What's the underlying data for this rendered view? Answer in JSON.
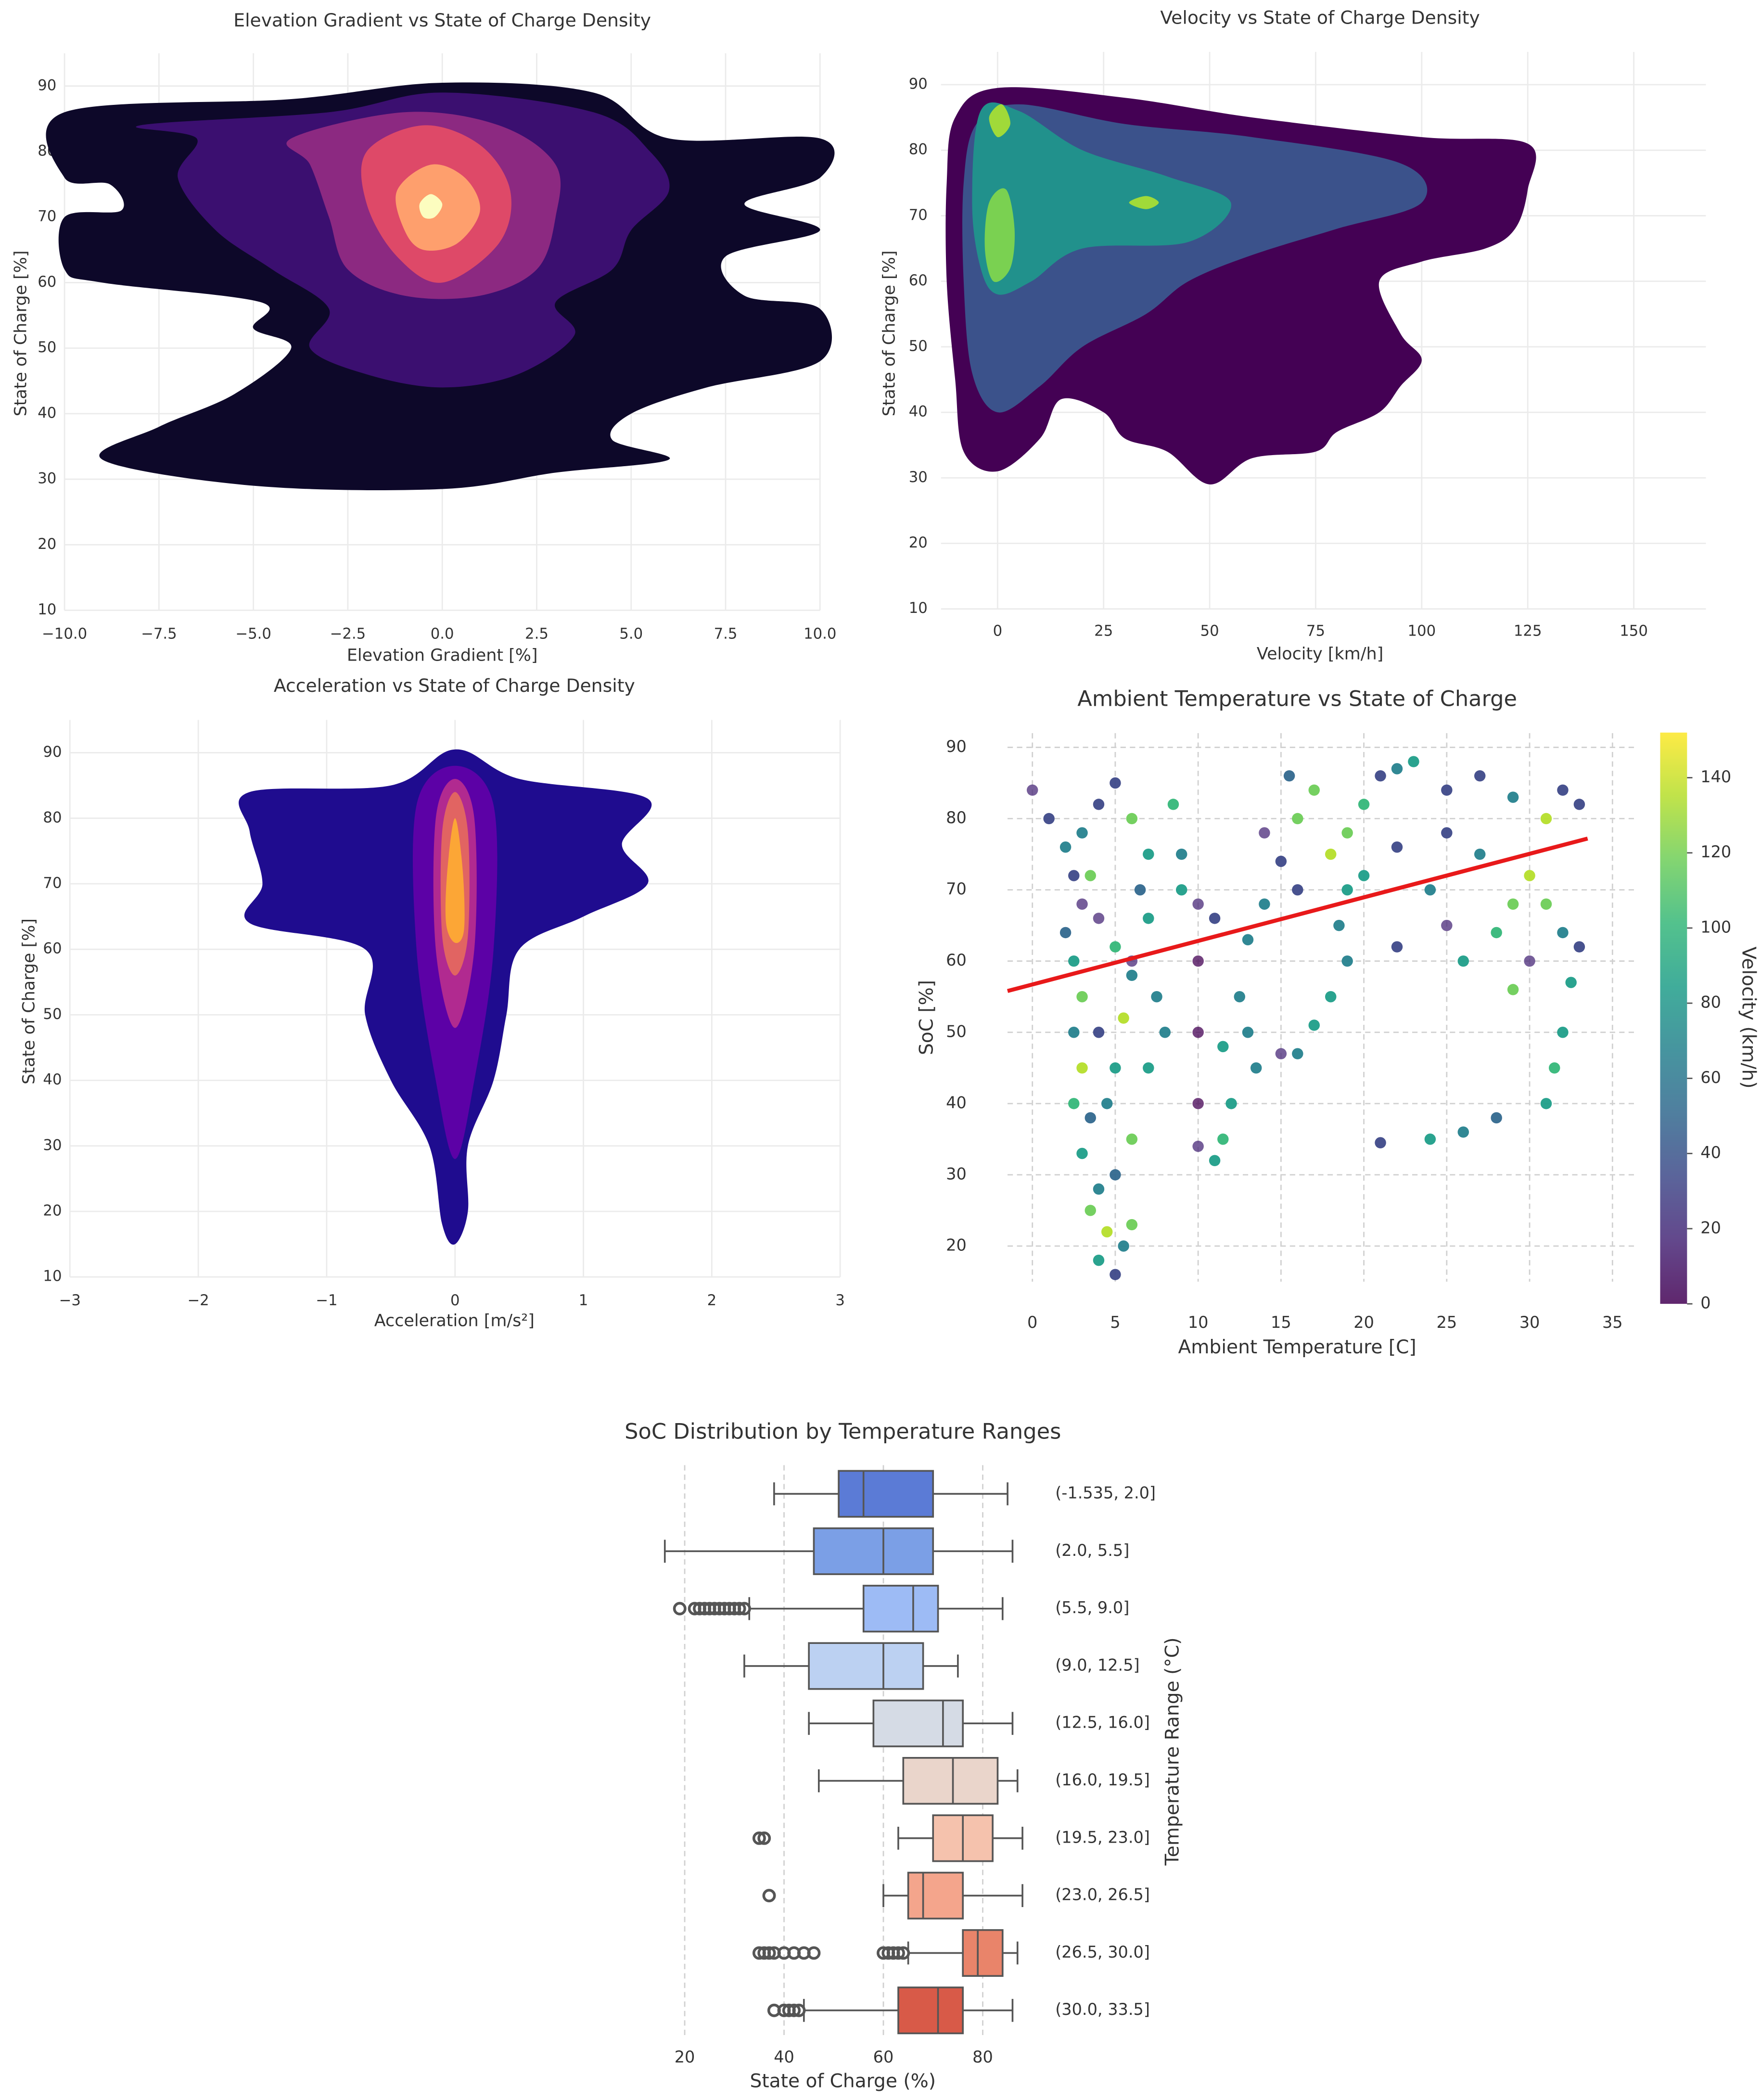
{
  "chart_data": [
    {
      "type": "density",
      "title": "Elevation Gradient vs State of Charge Density",
      "xlabel": "Elevation Gradient [%]",
      "ylabel": "State of Charge [%]",
      "xlim": [
        -10,
        10
      ],
      "ylim": [
        10,
        95
      ],
      "xticks": [
        {
          "value": -10,
          "label": "−10.0"
        },
        {
          "value": -7.5,
          "label": "−7.5"
        },
        {
          "value": -5,
          "label": "−5.0"
        },
        {
          "value": -2.5,
          "label": "−2.5"
        },
        {
          "value": 0,
          "label": "0.0"
        },
        2.5,
        {
          "value": 5,
          "label": "5.0"
        },
        7.5,
        {
          "value": 10,
          "label": "10.0"
        }
      ],
      "yticks": [
        10,
        20,
        30,
        40,
        50,
        60,
        70,
        80,
        90
      ],
      "grid": true,
      "contours": [
        {
          "color": "#0d0829",
          "x": [
            -10,
            -4,
            0,
            4,
            6,
            10,
            10,
            8,
            10,
            7.5,
            8,
            10,
            10,
            7,
            5,
            4.5,
            6,
            3,
            0,
            -5,
            -9,
            -7.5,
            -5.5,
            -4,
            -5,
            -4.8,
            -9,
            -10,
            -10,
            -8.5,
            -8.8,
            -10
          ],
          "y": [
            86,
            88,
            90.5,
            89,
            82,
            82,
            76,
            72,
            68,
            64,
            58,
            56,
            48,
            44,
            40,
            36,
            33,
            31,
            28.5,
            29,
            33,
            38,
            43,
            50,
            53,
            57,
            60,
            62,
            70,
            71,
            75,
            76
          ]
        },
        {
          "color": "#3b0f70",
          "x": [
            -8,
            -3,
            0,
            4,
            5.5,
            6,
            5,
            4.5,
            3,
            3.5,
            2,
            0,
            -2,
            -3.5,
            -3,
            -4.5,
            -6,
            -7,
            -6.5
          ],
          "y": [
            84,
            86,
            89,
            86,
            80,
            74,
            68,
            62,
            57,
            52,
            46,
            44,
            46,
            50,
            56,
            62,
            68,
            76,
            82
          ]
        },
        {
          "color": "#8c2981",
          "x": [
            -4,
            -1,
            1.5,
            3,
            3,
            2.5,
            1,
            -1,
            -2.5,
            -3,
            -3.5
          ],
          "y": [
            82,
            86,
            84,
            78,
            70,
            62,
            58,
            58,
            62,
            70,
            78
          ]
        },
        {
          "color": "#de4968",
          "x": [
            -2,
            -0.5,
            1,
            1.8,
            1.5,
            0,
            -1.2,
            -2
          ],
          "y": [
            80,
            84,
            81,
            74,
            66,
            60,
            64,
            72
          ]
        },
        {
          "color": "#fe9f6d",
          "x": [
            -1.2,
            -0.3,
            0.6,
            1,
            0.4,
            -0.5,
            -1
          ],
          "y": [
            74,
            78,
            76,
            71,
            66,
            65,
            68
          ]
        },
        {
          "color": "#fcfdbf",
          "x": [
            -0.6,
            -0.3,
            0,
            -0.2,
            -0.5
          ],
          "y": [
            72,
            73.5,
            72,
            70,
            70
          ]
        }
      ]
    },
    {
      "type": "density",
      "title": "Velocity vs State of Charge Density",
      "xlabel": "Velocity [km/h]",
      "ylabel": "State of Charge [%]",
      "xlim": [
        -20,
        167
      ],
      "ylim": [
        10,
        95
      ],
      "xticks": [
        0,
        25,
        50,
        75,
        100,
        125,
        150
      ],
      "yticks": [
        10,
        20,
        30,
        40,
        50,
        60,
        70,
        80,
        90
      ],
      "grid": true,
      "contours": [
        {
          "color": "#440154",
          "x": [
            -10,
            0,
            30,
            60,
            100,
            125,
            125,
            122,
            115,
            100,
            90,
            95,
            100,
            95,
            90,
            80,
            75,
            60,
            50,
            40,
            30,
            25,
            15,
            10,
            0,
            -8,
            -10,
            -12,
            -12
          ],
          "y": [
            85,
            89.5,
            88,
            85,
            82,
            81,
            74,
            68,
            65,
            63,
            60,
            52,
            48,
            44,
            40,
            37,
            34,
            33,
            29,
            34,
            36,
            40,
            42,
            36,
            31,
            34,
            45,
            60,
            75
          ]
        },
        {
          "color": "#3b528b",
          "x": [
            -5,
            5,
            30,
            60,
            95,
            100,
            80,
            60,
            45,
            35,
            20,
            10,
            0,
            -6,
            -8,
            -8
          ],
          "y": [
            84,
            87,
            84,
            82,
            78,
            72,
            68,
            64,
            60,
            55,
            50,
            44,
            40,
            46,
            60,
            75
          ]
        },
        {
          "color": "#21918c",
          "x": [
            -4,
            5,
            20,
            40,
            55,
            45,
            20,
            8,
            0,
            -4,
            -6
          ],
          "y": [
            86,
            86,
            80,
            76,
            72,
            66,
            65,
            60,
            58,
            62,
            72
          ]
        },
        {
          "color": "#7ad151",
          "x": [
            -2,
            2,
            4,
            3,
            -1,
            -3
          ],
          "y": [
            72,
            74,
            68,
            62,
            60,
            65
          ]
        },
        {
          "color": "#a0da39",
          "x": [
            -2,
            1,
            3,
            0
          ],
          "y": [
            85,
            87,
            84,
            82
          ]
        },
        {
          "color": "#a0da39",
          "x": [
            31,
            35,
            38,
            35
          ],
          "y": [
            72,
            73,
            72,
            71
          ]
        }
      ]
    },
    {
      "type": "density",
      "title": "Acceleration vs State of Charge Density",
      "xlabel": "Acceleration [m/s²]",
      "ylabel": "State of Charge [%]",
      "xlim": [
        -3,
        3
      ],
      "ylim": [
        10,
        95
      ],
      "xticks": [
        {
          "value": -3,
          "label": "−3"
        },
        {
          "value": -2,
          "label": "−2"
        },
        {
          "value": -1,
          "label": "−1"
        },
        0,
        1,
        2,
        3
      ],
      "yticks": [
        10,
        20,
        30,
        40,
        50,
        60,
        70,
        80,
        90
      ],
      "grid": true,
      "contours": [
        {
          "color": "#1f0c8f",
          "x": [
            -1.6,
            -0.5,
            0,
            0.5,
            1.5,
            1.3,
            1.5,
            1,
            0.5,
            0.4,
            0.3,
            0.1,
            0.1,
            0,
            -0.1,
            -0.2,
            -0.5,
            -0.7,
            -0.7,
            -1.6,
            -1.5,
            -1.6
          ],
          "y": [
            84,
            85,
            90.5,
            86,
            83,
            76,
            70,
            65,
            60,
            50,
            40,
            30,
            20,
            15,
            18,
            30,
            40,
            50,
            60,
            64,
            70,
            78
          ]
        },
        {
          "color": "#5c01a6",
          "x": [
            -0.3,
            0,
            0.3,
            0.3,
            0.15,
            0,
            -0.15,
            -0.3
          ],
          "y": [
            82,
            88,
            82,
            60,
            40,
            28,
            40,
            60
          ]
        },
        {
          "color": "#b12a90",
          "x": [
            -0.15,
            0,
            0.15,
            0.15,
            0,
            -0.15
          ],
          "y": [
            80,
            86,
            80,
            60,
            48,
            60
          ]
        },
        {
          "color": "#e16462",
          "x": [
            -0.1,
            0,
            0.1,
            0.1,
            0,
            -0.1
          ],
          "y": [
            78,
            84,
            78,
            62,
            56,
            62
          ]
        },
        {
          "color": "#fca636",
          "x": [
            -0.06,
            0,
            0.06,
            0.07,
            0,
            -0.07
          ],
          "y": [
            72,
            80,
            72,
            63,
            61,
            64
          ]
        }
      ]
    },
    {
      "type": "scatter",
      "title": "Ambient Temperature vs State of Charge",
      "xlabel": "Ambient Temperature [C]",
      "ylabel": "SoC [%]",
      "xlim": [
        -1.5,
        36.5
      ],
      "ylim": [
        15,
        92
      ],
      "xticks": [
        0,
        5,
        10,
        15,
        20,
        25,
        30,
        35
      ],
      "yticks": [
        20,
        30,
        40,
        50,
        60,
        70,
        80,
        90
      ],
      "grid": true,
      "x": [
        0,
        1,
        2,
        2.5,
        3,
        2,
        2.5,
        3,
        2.5,
        3,
        2.5,
        3.5,
        3,
        4,
        3.5,
        4.5,
        4,
        5,
        5.5,
        6,
        5,
        6,
        4.5,
        5,
        4,
        5.5,
        6,
        5,
        4,
        3.5,
        3,
        4,
        5,
        6,
        7,
        6.5,
        7,
        6,
        7.5,
        8,
        7,
        8.5,
        9,
        10,
        10,
        10,
        10,
        10,
        11,
        11.5,
        12,
        11.5,
        13,
        13.5,
        12.5,
        13,
        14,
        11,
        9,
        14,
        15,
        16,
        15.5,
        17,
        16,
        18,
        19,
        18.5,
        19,
        18,
        17,
        16,
        15,
        19,
        20,
        21,
        22,
        23,
        20,
        22,
        24,
        25,
        26,
        28,
        29,
        30,
        31,
        32,
        33,
        32.5,
        32,
        31.5,
        31,
        28,
        26,
        24,
        21,
        25,
        27,
        29,
        31,
        32,
        33,
        27,
        25,
        30,
        29,
        22
      ],
      "y": [
        84,
        80,
        76,
        72,
        68,
        64,
        60,
        55,
        50,
        45,
        40,
        38,
        33,
        28,
        25,
        22,
        18,
        16,
        20,
        23,
        30,
        35,
        40,
        45,
        50,
        52,
        58,
        62,
        66,
        72,
        78,
        82,
        85,
        80,
        75,
        70,
        66,
        60,
        55,
        50,
        45,
        82,
        75,
        68,
        60,
        50,
        40,
        34,
        32,
        35,
        40,
        48,
        50,
        45,
        55,
        63,
        68,
        66,
        70,
        78,
        74,
        70,
        86,
        84,
        80,
        75,
        70,
        65,
        60,
        55,
        51,
        47,
        47,
        78,
        82,
        86,
        87,
        88,
        72,
        76,
        70,
        65,
        60,
        64,
        68,
        72,
        68,
        64,
        62,
        57,
        50,
        45,
        40,
        38,
        36,
        35,
        34.5,
        84,
        86,
        83,
        80,
        84,
        82,
        75,
        78,
        60,
        56,
        62
      ],
      "c": [
        20,
        30,
        60,
        40,
        20,
        50,
        90,
        110,
        70,
        130,
        100,
        50,
        80,
        60,
        120,
        140,
        90,
        40,
        70,
        110,
        50,
        120,
        60,
        80,
        40,
        130,
        60,
        100,
        20,
        110,
        60,
        40,
        30,
        110,
        90,
        50,
        80,
        20,
        60,
        70,
        90,
        100,
        60,
        10,
        5,
        5,
        5,
        10,
        80,
        100,
        90,
        90,
        70,
        60,
        60,
        70,
        60,
        30,
        90,
        20,
        30,
        40,
        50,
        120,
        110,
        140,
        80,
        60,
        70,
        80,
        90,
        70,
        20,
        120,
        100,
        30,
        60,
        90,
        80,
        40,
        60,
        20,
        80,
        100,
        120,
        140,
        120,
        60,
        40,
        80,
        90,
        100,
        80,
        50,
        60,
        80,
        30,
        30,
        40,
        70,
        130,
        40,
        30,
        60,
        40,
        20,
        110,
        30
      ],
      "colorbar": {
        "label": "Velocity (km/h)",
        "lim": [
          0,
          152
        ],
        "ticks": [
          0,
          20,
          40,
          60,
          80,
          100,
          120,
          140
        ]
      },
      "trend": {
        "color": "#e8191a",
        "x": [
          -1.5,
          33.5
        ],
        "y": [
          55.8,
          77.2
        ]
      }
    },
    {
      "type": "box",
      "title": "SoC Distribution by Temperature Ranges",
      "xlabel": "State of Charge (%)",
      "ylabel": "Temperature Range (°C)",
      "xlim": [
        8,
        90
      ],
      "xticks": [
        20,
        40,
        60,
        80
      ],
      "grid": true,
      "categories": [
        "(-1.535, 2.0]",
        "(2.0, 5.5]",
        "(5.5, 9.0]",
        "(9.0, 12.5]",
        "(12.5, 16.0]",
        "(16.0, 19.5]",
        "(19.5, 23.0]",
        "(23.0, 26.5]",
        "(26.5, 30.0]",
        "(30.0, 33.5]"
      ],
      "colors": [
        "#5b7bd6",
        "#7b9fe6",
        "#9dbbf5",
        "#bcd1f2",
        "#d5dbe5",
        "#ead5cb",
        "#f5c2ad",
        "#f4a58c",
        "#e9846a",
        "#d85a48"
      ],
      "boxes": [
        {
          "low": 38,
          "q1": 51,
          "median": 56,
          "q3": 70,
          "high": 85,
          "outliers": []
        },
        {
          "low": 16,
          "q1": 46,
          "median": 60,
          "q3": 70,
          "high": 86,
          "outliers": []
        },
        {
          "low": 33,
          "q1": 56,
          "median": 66,
          "q3": 71,
          "high": 84,
          "outliers": [
            19,
            22,
            23,
            24,
            25,
            26,
            27,
            28,
            29,
            30,
            31,
            32
          ]
        },
        {
          "low": 32,
          "q1": 45,
          "median": 60,
          "q3": 68,
          "high": 75,
          "outliers": []
        },
        {
          "low": 45,
          "q1": 58,
          "median": 72,
          "q3": 76,
          "high": 86,
          "outliers": []
        },
        {
          "low": 47,
          "q1": 64,
          "median": 74,
          "q3": 83,
          "high": 87,
          "outliers": []
        },
        {
          "low": 63,
          "q1": 70,
          "median": 76,
          "q3": 82,
          "high": 88,
          "outliers": [
            35,
            36
          ]
        },
        {
          "low": 60,
          "q1": 65,
          "median": 68,
          "q3": 76,
          "high": 88,
          "outliers": [
            37
          ]
        },
        {
          "low": 65,
          "q1": 76,
          "median": 79,
          "q3": 84,
          "high": 87,
          "outliers": [
            35,
            36,
            37,
            38,
            40,
            42,
            44,
            46,
            60,
            61,
            62,
            63,
            64
          ]
        },
        {
          "low": 44,
          "q1": 63,
          "median": 71,
          "q3": 76,
          "high": 86,
          "outliers": [
            38,
            40,
            41,
            42,
            43
          ]
        }
      ]
    }
  ]
}
